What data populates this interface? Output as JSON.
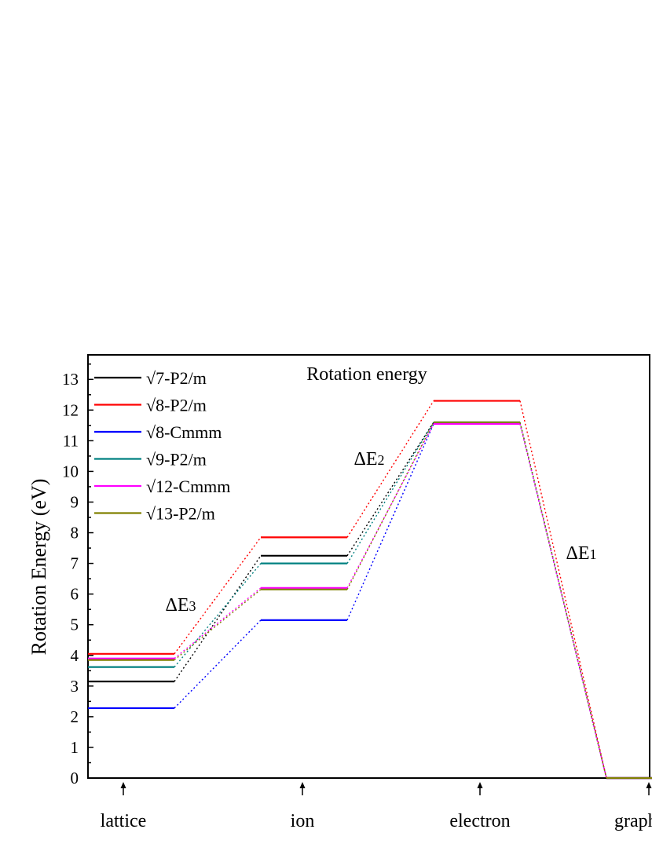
{
  "chart_data": {
    "type": "line",
    "title": "Rotation energy",
    "ylabel": "Rotation Energy (eV)",
    "xlabel": "",
    "ylim": [
      0,
      13.8
    ],
    "yticks": [
      0,
      1,
      2,
      3,
      4,
      5,
      6,
      7,
      8,
      9,
      10,
      11,
      12,
      13
    ],
    "grid": false,
    "legend_position": "top-left",
    "categories": [
      "lattice",
      "ion",
      "electron",
      "graphene"
    ],
    "marker": "↑",
    "series": [
      {
        "name": "√7-P2/m",
        "color": "#000000",
        "values": [
          3.15,
          7.25,
          11.6,
          0
        ]
      },
      {
        "name": "√8-P2/m",
        "color": "#ff0000",
        "values": [
          4.05,
          7.85,
          12.3,
          0
        ]
      },
      {
        "name": "√8-Cmmm",
        "color": "#0000ff",
        "values": [
          2.28,
          5.15,
          11.55,
          0
        ]
      },
      {
        "name": "√9-P2/m",
        "color": "#008080",
        "values": [
          3.62,
          7.0,
          11.6,
          0
        ]
      },
      {
        "name": "√12-Cmmm",
        "color": "#ff00ff",
        "values": [
          3.9,
          6.2,
          11.55,
          0
        ]
      },
      {
        "name": "√13-P2/m",
        "color": "#808000",
        "values": [
          3.85,
          6.15,
          11.6,
          0
        ]
      }
    ],
    "annotations": [
      {
        "text": "ΔE",
        "sub": "3",
        "x_between": [
          0,
          1
        ],
        "y": 5.6
      },
      {
        "text": "ΔE",
        "sub": "2",
        "x_between": [
          1,
          2
        ],
        "y": 10.3
      },
      {
        "text": "ΔE",
        "sub": "1",
        "x_between": [
          2,
          3
        ],
        "y": 7.2
      }
    ]
  }
}
